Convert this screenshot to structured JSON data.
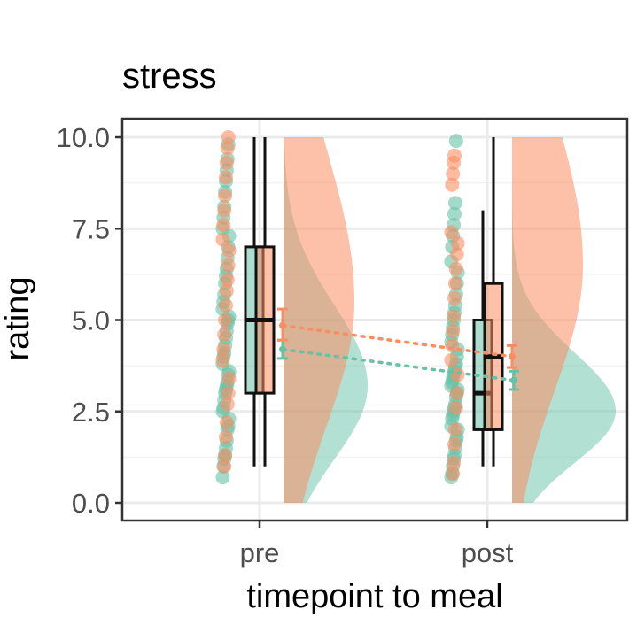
{
  "chart_data": {
    "type": "raincloud",
    "title": "stress",
    "xlabel": "timepoint to meal",
    "ylabel": "rating",
    "ylim": [
      0,
      10
    ],
    "y_ticks": [
      "0.0",
      "2.5",
      "5.0",
      "7.5",
      "10.0"
    ],
    "y_tick_values": [
      0,
      2.5,
      5,
      7.5,
      10
    ],
    "categories": [
      "pre",
      "post"
    ],
    "grid": true,
    "colors": {
      "green": "#66c2a5",
      "orange": "#fc8d62",
      "panel_border": "#333333",
      "grid": "#ebebeb"
    },
    "series": [
      {
        "color": "#66c2a5",
        "boxes": [
          {
            "category": "pre",
            "min": 1,
            "q1": 3,
            "median": 5,
            "q3": 7,
            "max": 10
          },
          {
            "category": "post",
            "min": 1,
            "q1": 2,
            "median": 3,
            "q3": 5,
            "max": 8
          }
        ],
        "means": [
          {
            "category": "pre",
            "mean": 4.2,
            "lower": 3.95,
            "upper": 4.45
          },
          {
            "category": "post",
            "mean": 3.35,
            "lower": 3.1,
            "upper": 3.6
          }
        ],
        "density_peak": [
          {
            "category": "pre",
            "peak_y": 3.2
          },
          {
            "category": "post",
            "peak_y": 2.5
          }
        ],
        "points": {
          "pre": [
            0.7,
            1.0,
            1.2,
            1.3,
            1.5,
            1.7,
            2.0,
            2.1,
            2.3,
            2.5,
            2.6,
            2.8,
            3.0,
            3.1,
            3.2,
            3.3,
            3.5,
            3.6,
            3.8,
            4.0,
            4.1,
            4.3,
            4.5,
            4.7,
            4.9,
            5.0,
            5.1,
            5.3,
            5.5,
            5.7,
            6.0,
            6.2,
            6.4,
            6.7,
            7.0,
            7.3,
            7.5,
            7.8,
            8.1,
            8.5,
            8.8,
            9.1,
            9.4,
            9.8
          ],
          "post": [
            0.7,
            0.8,
            1.0,
            1.2,
            1.3,
            1.5,
            1.7,
            1.8,
            2.0,
            2.1,
            2.3,
            2.4,
            2.5,
            2.6,
            2.7,
            2.9,
            3.0,
            3.1,
            3.2,
            3.3,
            3.4,
            3.5,
            3.6,
            3.7,
            3.8,
            4.0,
            4.2,
            4.4,
            4.6,
            4.8,
            5.0,
            5.2,
            5.4,
            5.7,
            6.0,
            6.3,
            6.6,
            7.0,
            7.3,
            7.6,
            7.9,
            8.2,
            9.9
          ]
        }
      },
      {
        "color": "#fc8d62",
        "boxes": [
          {
            "category": "pre",
            "min": 1,
            "q1": 3,
            "median": 5,
            "q3": 7,
            "max": 10
          },
          {
            "category": "post",
            "min": 1,
            "q1": 2,
            "median": 4,
            "q3": 6,
            "max": 10
          }
        ],
        "means": [
          {
            "category": "pre",
            "mean": 4.85,
            "lower": 4.45,
            "upper": 5.3
          },
          {
            "category": "post",
            "mean": 4.0,
            "lower": 3.7,
            "upper": 4.3
          }
        ],
        "density_peak": [
          {
            "category": "pre",
            "peak_y": 5.5
          },
          {
            "category": "post",
            "peak_y": 6.5
          }
        ],
        "points": {
          "pre": [
            1.0,
            1.3,
            1.8,
            2.2,
            2.7,
            3.0,
            3.4,
            3.9,
            4.2,
            4.6,
            5.0,
            5.4,
            5.8,
            6.1,
            6.5,
            6.9,
            7.2,
            7.6,
            8.0,
            8.4,
            8.9,
            9.3,
            9.7,
            10.0
          ],
          "post": [
            0.8,
            1.1,
            1.6,
            2.0,
            2.6,
            3.0,
            3.5,
            3.9,
            4.3,
            4.7,
            5.1,
            5.6,
            6.0,
            6.4,
            6.8,
            7.1,
            7.4,
            8.7,
            9.0,
            9.3,
            9.5
          ]
        }
      }
    ]
  }
}
